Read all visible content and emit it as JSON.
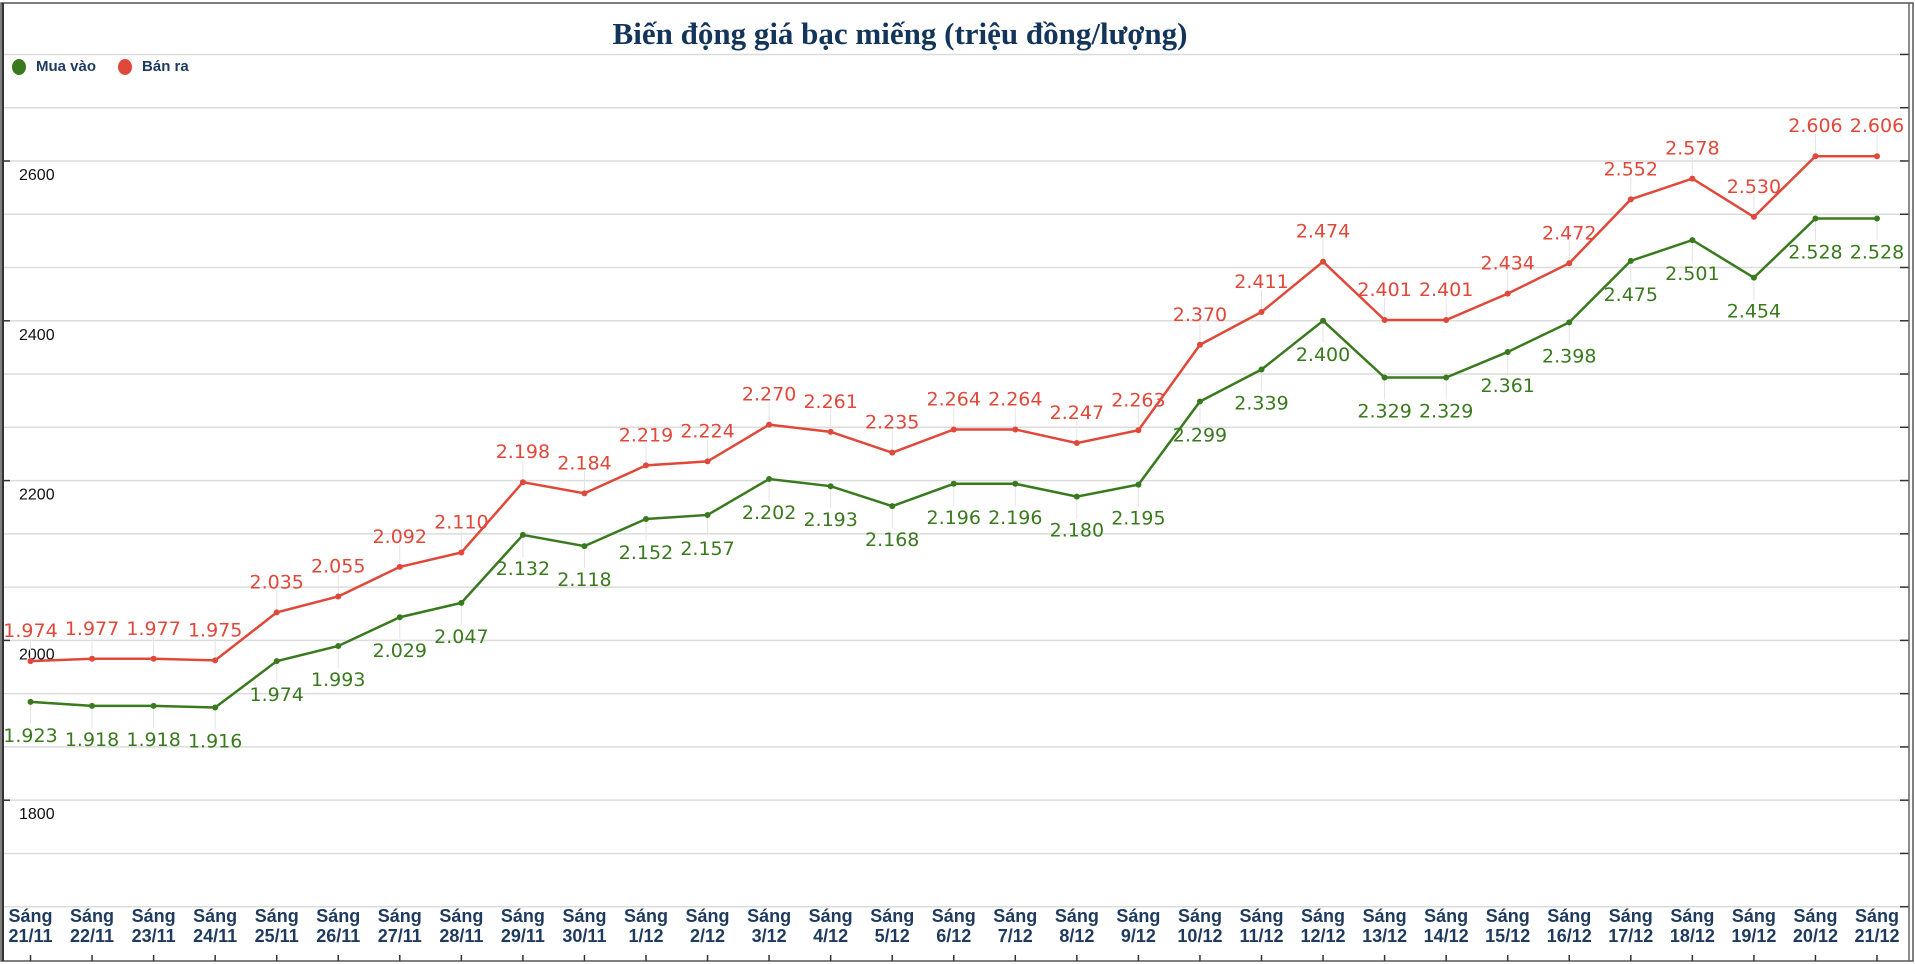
{
  "chart_data": {
    "type": "line",
    "title": "Biến động giá bạc miếng (triệu đồng/lượng)",
    "xlabel": "",
    "ylabel": "",
    "ylim": [
      1666.7,
      2733.3
    ],
    "yticks": [
      1800,
      2000,
      2200,
      2400,
      2600
    ],
    "ytick_labels": [
      "1800",
      "2000",
      "2200",
      "2400",
      "2600"
    ],
    "grid": true,
    "legend": "top-left",
    "categories": [
      [
        "Sáng",
        "21/11"
      ],
      [
        "Sáng",
        "22/11"
      ],
      [
        "Sáng",
        "23/11"
      ],
      [
        "Sáng",
        "24/11"
      ],
      [
        "Sáng",
        "25/11"
      ],
      [
        "Sáng",
        "26/11"
      ],
      [
        "Sáng",
        "27/11"
      ],
      [
        "Sáng",
        "28/11"
      ],
      [
        "Sáng",
        "29/11"
      ],
      [
        "Sáng",
        "30/11"
      ],
      [
        "Sáng",
        "1/12"
      ],
      [
        "Sáng",
        "2/12"
      ],
      [
        "Sáng",
        "3/12"
      ],
      [
        "Sáng",
        "4/12"
      ],
      [
        "Sáng",
        "5/12"
      ],
      [
        "Sáng",
        "6/12"
      ],
      [
        "Sáng",
        "7/12"
      ],
      [
        "Sáng",
        "8/12"
      ],
      [
        "Sáng",
        "9/12"
      ],
      [
        "Sáng",
        "10/12"
      ],
      [
        "Sáng",
        "11/12"
      ],
      [
        "Sáng",
        "12/12"
      ],
      [
        "Sáng",
        "13/12"
      ],
      [
        "Sáng",
        "14/12"
      ],
      [
        "Sáng",
        "15/12"
      ],
      [
        "Sáng",
        "16/12"
      ],
      [
        "Sáng",
        "17/12"
      ],
      [
        "Sáng",
        "18/12"
      ],
      [
        "Sáng",
        "19/12"
      ],
      [
        "Sáng",
        "20/12"
      ],
      [
        "Sáng",
        "21/12"
      ]
    ],
    "series": [
      {
        "name": "Mua vào",
        "color": "#3a7a1e",
        "label_position": "below",
        "values": [
          1923,
          1918,
          1918,
          1916,
          1974,
          1993,
          2029,
          2047,
          2132,
          2118,
          2152,
          2157,
          2202,
          2193,
          2168,
          2196,
          2196,
          2180,
          2195,
          2299,
          2339,
          2400,
          2329,
          2329,
          2361,
          2398,
          2475,
          2501,
          2454,
          2528,
          2528
        ],
        "labels": [
          "1.923",
          "1.918",
          "1.918",
          "1.916",
          "1.974",
          "1.993",
          "2.029",
          "2.047",
          "2.132",
          "2.118",
          "2.152",
          "2.157",
          "2.202",
          "2.193",
          "2.168",
          "2.196",
          "2.196",
          "2.180",
          "2.195",
          "2.299",
          "2.339",
          "2.400",
          "2.329",
          "2.329",
          "2.361",
          "2.398",
          "2.475",
          "2.501",
          "2.454",
          "2.528",
          "2.528"
        ]
      },
      {
        "name": "Bán ra",
        "color": "#e0483a",
        "label_position": "above",
        "values": [
          1974,
          1977,
          1977,
          1975,
          2035,
          2055,
          2092,
          2110,
          2198,
          2184,
          2219,
          2224,
          2270,
          2261,
          2235,
          2264,
          2264,
          2247,
          2263,
          2370,
          2411,
          2474,
          2401,
          2401,
          2434,
          2472,
          2552,
          2578,
          2530,
          2606,
          2606
        ],
        "labels": [
          "1.974",
          "1.977",
          "1.977",
          "1.975",
          "2.035",
          "2.055",
          "2.092",
          "2.110",
          "2.198",
          "2.184",
          "2.219",
          "2.224",
          "2.270",
          "2.261",
          "2.235",
          "2.264",
          "2.264",
          "2.247",
          "2.263",
          "2.370",
          "2.411",
          "2.474",
          "2.401",
          "2.401",
          "2.434",
          "2.472",
          "2.552",
          "2.578",
          "2.530",
          "2.606",
          "2.606"
        ]
      }
    ]
  }
}
